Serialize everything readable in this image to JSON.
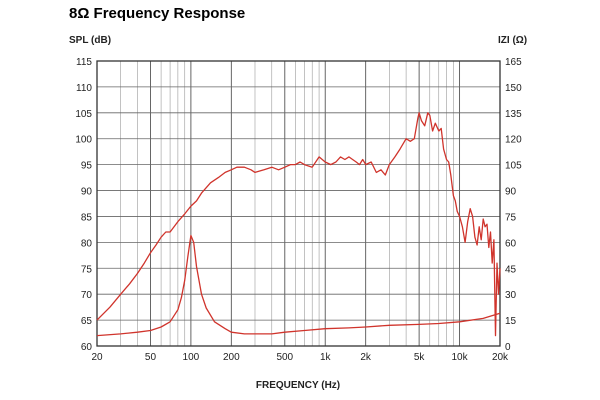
{
  "chart_data": {
    "type": "line",
    "title": "8Ω Frequency Response",
    "xlabel": "FREQUENCY (Hz)",
    "ylabel_left": "SPL (dB)",
    "ylabel_right": "IZI (Ω)",
    "x_scale": "log",
    "xlim": [
      20,
      20000
    ],
    "ylim_left": [
      60,
      115
    ],
    "ylim_right": [
      0,
      165
    ],
    "grid": true,
    "x_ticks": [
      {
        "value": 20,
        "label": "20"
      },
      {
        "value": 50,
        "label": "50"
      },
      {
        "value": 100,
        "label": "100"
      },
      {
        "value": 200,
        "label": "200"
      },
      {
        "value": 500,
        "label": "500"
      },
      {
        "value": 1000,
        "label": "1k"
      },
      {
        "value": 2000,
        "label": "2k"
      },
      {
        "value": 5000,
        "label": "5k"
      },
      {
        "value": 10000,
        "label": "10k"
      },
      {
        "value": 20000,
        "label": "20k"
      }
    ],
    "y_ticks_left": [
      "115",
      "110",
      "105",
      "100",
      "95",
      "90",
      "85",
      "80",
      "75",
      "70",
      "65",
      "60"
    ],
    "y_ticks_right": [
      "165",
      "150",
      "135",
      "120",
      "105",
      "90",
      "75",
      "60",
      "45",
      "30",
      "15",
      "0"
    ],
    "line_color": "#d0342c",
    "series": [
      {
        "axis": "left",
        "x": [
          20,
          25,
          30,
          35,
          40,
          45,
          50,
          55,
          60,
          65,
          70,
          80,
          90,
          100,
          110,
          120,
          140,
          160,
          180,
          200,
          220,
          250,
          280,
          300,
          350,
          400,
          450,
          500,
          550,
          600,
          650,
          700,
          800,
          900,
          1000,
          1100,
          1200,
          1300,
          1400,
          1500,
          1600,
          1700,
          1800,
          1900,
          2000,
          2200,
          2400,
          2600,
          2800,
          3000,
          3300,
          3600,
          4000,
          4300,
          4600,
          4900,
          5000,
          5200,
          5500,
          5800,
          6000,
          6300,
          6600,
          7000,
          7300,
          7600,
          8000,
          8300,
          8600,
          9000,
          9300,
          9600,
          10000,
          10500,
          11000,
          11500,
          12000,
          12500,
          13000,
          13500,
          14000,
          14500,
          15000,
          15500,
          16000,
          16500,
          17000,
          17500,
          18000,
          18500,
          19000,
          19500,
          20000
        ],
        "values": [
          65.0,
          67.5,
          70.0,
          72.0,
          74.0,
          76.0,
          78.0,
          79.5,
          81.0,
          82.0,
          82.0,
          84.0,
          85.5,
          87.0,
          88.0,
          89.5,
          91.5,
          92.5,
          93.5,
          94.0,
          94.5,
          94.5,
          94.0,
          93.5,
          94.0,
          94.5,
          94.0,
          94.5,
          95.0,
          95.0,
          95.5,
          95.0,
          94.5,
          96.5,
          95.5,
          95.0,
          95.5,
          96.5,
          96.0,
          96.5,
          96.0,
          95.5,
          95.0,
          96.0,
          95.0,
          95.5,
          93.5,
          94.0,
          93.0,
          95.0,
          96.5,
          98.0,
          100.0,
          99.5,
          100.0,
          104.0,
          105.0,
          103.5,
          102.5,
          105.0,
          104.5,
          101.5,
          103.0,
          101.5,
          102.0,
          98.0,
          96.0,
          95.5,
          93.0,
          89.0,
          88.0,
          86.0,
          85.0,
          83.0,
          80.0,
          84.0,
          86.5,
          85.0,
          81.0,
          79.5,
          83.0,
          80.5,
          84.5,
          83.0,
          83.5,
          79.0,
          82.0,
          76.0,
          80.5,
          62.0,
          76.0,
          70.0,
          75.0
        ]
      },
      {
        "axis": "right",
        "x": [
          20,
          30,
          40,
          50,
          60,
          70,
          80,
          85,
          90,
          95,
          100,
          105,
          110,
          120,
          130,
          150,
          180,
          200,
          250,
          300,
          400,
          500,
          700,
          1000,
          1500,
          2000,
          3000,
          5000,
          7000,
          10000,
          15000,
          20000
        ],
        "values": [
          6,
          7,
          8,
          9,
          11,
          14,
          21,
          28,
          38,
          52,
          64,
          60,
          46,
          30,
          22,
          14,
          10,
          8,
          7,
          7,
          7,
          8,
          9,
          10,
          10.5,
          11,
          12,
          12.5,
          13,
          14,
          16,
          19
        ]
      }
    ]
  }
}
